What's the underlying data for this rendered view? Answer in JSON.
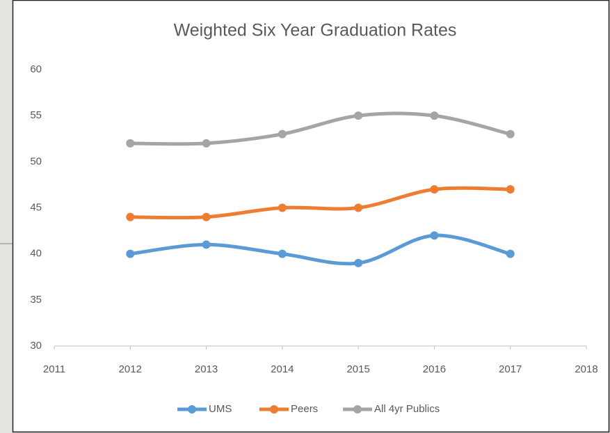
{
  "chart_data": {
    "type": "line",
    "title": "Weighted Six Year Graduation Rates",
    "x": [
      2012,
      2013,
      2014,
      2015,
      2016,
      2017
    ],
    "series": [
      {
        "name": "UMS",
        "color": "#5b9bd5",
        "values": [
          40,
          41,
          40,
          39,
          42,
          40
        ]
      },
      {
        "name": "Peers",
        "color": "#ed7d31",
        "values": [
          44,
          44,
          45,
          45,
          47,
          47
        ]
      },
      {
        "name": "All 4yr Publics",
        "color": "#a5a5a5",
        "values": [
          52,
          52,
          53,
          55,
          55,
          53
        ]
      }
    ],
    "xlim": [
      2011,
      2018
    ],
    "xticks": [
      2011,
      2012,
      2013,
      2014,
      2015,
      2016,
      2017,
      2018
    ],
    "ylim": [
      30,
      60
    ],
    "yticks": [
      30,
      35,
      40,
      45,
      50,
      55,
      60
    ],
    "smooth": true,
    "grid": false,
    "legend": "bottom"
  }
}
